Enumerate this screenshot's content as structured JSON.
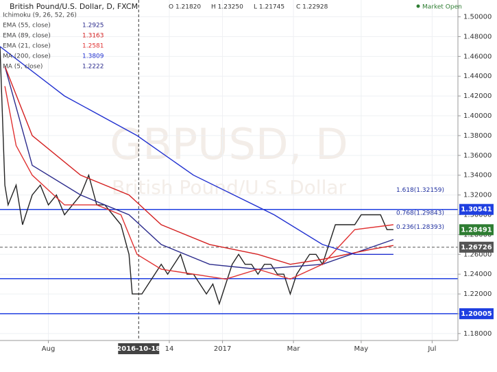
{
  "chart_data": {
    "type": "line",
    "title": "British Pound/U.S. Dollar, D, FXCM",
    "ohlc_text": [
      "O 1.21820",
      "H 1.23250",
      "L 1.21745",
      "C 1.22928"
    ],
    "status": "Market Open",
    "watermark": [
      "GBPUSD, D",
      "British Pound/U.S. Dollar"
    ],
    "xlim": [
      0,
      284
    ],
    "xticks": [
      {
        "value": 30,
        "label": "Aug"
      },
      {
        "value": 105,
        "label": "14"
      },
      {
        "value": 138,
        "label": "2017"
      },
      {
        "value": 182,
        "label": "Mar"
      },
      {
        "value": 224,
        "label": "May"
      },
      {
        "value": 268,
        "label": "Jul"
      }
    ],
    "crosshair": {
      "value": 86,
      "label": "2016-10-18"
    },
    "ylim": [
      1.173,
      1.517
    ],
    "yticks": [
      {
        "value": 1.18,
        "label": "1.18000"
      },
      {
        "value": 1.2,
        "label": "1.20000"
      },
      {
        "value": 1.22,
        "label": "1.22000"
      },
      {
        "value": 1.24,
        "label": "1.24000"
      },
      {
        "value": 1.26,
        "label": "1.26000"
      },
      {
        "value": 1.28,
        "label": "1.28000"
      },
      {
        "value": 1.3,
        "label": "1.30000"
      },
      {
        "value": 1.32,
        "label": "1.32000"
      },
      {
        "value": 1.34,
        "label": "1.34000"
      },
      {
        "value": 1.36,
        "label": "1.36000"
      },
      {
        "value": 1.38,
        "label": "1.38000"
      },
      {
        "value": 1.4,
        "label": "1.40000"
      },
      {
        "value": 1.42,
        "label": "1.42000"
      },
      {
        "value": 1.44,
        "label": "1.44000"
      },
      {
        "value": 1.46,
        "label": "1.46000"
      },
      {
        "value": 1.48,
        "label": "1.48000"
      },
      {
        "value": 1.5,
        "label": "1.50000"
      }
    ],
    "grid": true,
    "series": [
      {
        "color": "#222222",
        "x": [
          0,
          3,
          5,
          10,
          14,
          20,
          25,
          30,
          35,
          40,
          45,
          50,
          55,
          60,
          65,
          70,
          75,
          80,
          82,
          84,
          88,
          92,
          96,
          100,
          104,
          108,
          112,
          116,
          120,
          124,
          128,
          132,
          136,
          140,
          144,
          148,
          152,
          156,
          160,
          164,
          168,
          172,
          176,
          180,
          184,
          188,
          192,
          196,
          200,
          204,
          208,
          212,
          216,
          220,
          224,
          228,
          232,
          236,
          240,
          244
        ],
        "values": [
          1.47,
          1.33,
          1.31,
          1.33,
          1.29,
          1.32,
          1.33,
          1.31,
          1.32,
          1.3,
          1.31,
          1.32,
          1.34,
          1.31,
          1.31,
          1.3,
          1.29,
          1.26,
          1.22,
          1.22,
          1.22,
          1.23,
          1.24,
          1.25,
          1.24,
          1.25,
          1.26,
          1.24,
          1.24,
          1.23,
          1.22,
          1.23,
          1.21,
          1.23,
          1.25,
          1.26,
          1.25,
          1.25,
          1.24,
          1.25,
          1.25,
          1.24,
          1.24,
          1.22,
          1.24,
          1.25,
          1.26,
          1.26,
          1.25,
          1.27,
          1.29,
          1.29,
          1.29,
          1.29,
          1.3,
          1.3,
          1.3,
          1.3,
          1.285,
          1.285
        ]
      },
      {
        "name": "Ichimoku (9, 26, 52, 26)",
        "color": "#888888"
      },
      {
        "name": "EMA (55, close)",
        "color": "#2b2b8c",
        "legend_value": 1.2925,
        "x": [
          3,
          20,
          50,
          80,
          100,
          130,
          160,
          200,
          244
        ],
        "values": [
          1.45,
          1.35,
          1.32,
          1.3,
          1.27,
          1.25,
          1.245,
          1.25,
          1.275
        ]
      },
      {
        "name": "EMA (89, close)",
        "color": "#d42020",
        "legend_value": 1.3163,
        "x": [
          3,
          20,
          50,
          80,
          100,
          130,
          160,
          180,
          200,
          230,
          244
        ],
        "values": [
          1.45,
          1.38,
          1.34,
          1.32,
          1.29,
          1.27,
          1.26,
          1.25,
          1.255,
          1.265,
          1.269
        ]
      },
      {
        "name": "EMA (21, close)",
        "color": "#e03030",
        "legend_value": 1.2581,
        "x": [
          3,
          10,
          20,
          40,
          60,
          75,
          85,
          100,
          120,
          140,
          160,
          180,
          200,
          220,
          244
        ],
        "values": [
          1.43,
          1.37,
          1.34,
          1.31,
          1.31,
          1.3,
          1.26,
          1.245,
          1.24,
          1.235,
          1.245,
          1.235,
          1.25,
          1.285,
          1.29
        ]
      },
      {
        "name": "MA (200, close)",
        "color": "#2030d0",
        "legend_value": 1.3809,
        "x": [
          0,
          40,
          85,
          120,
          170,
          200,
          220,
          244
        ],
        "values": [
          1.47,
          1.42,
          1.38,
          1.34,
          1.3,
          1.27,
          1.26,
          1.26
        ]
      },
      {
        "name": "MA (5, close)",
        "color": "#2b2b8c",
        "legend_value": 1.2222
      }
    ],
    "price_lines": [
      {
        "value": 1.30541,
        "color": "#1f3fe0",
        "dashed": false
      },
      {
        "value": 1.2355,
        "color": "#1f3fe0",
        "dashed": false
      },
      {
        "value": 1.20005,
        "color": "#1f3fe0",
        "dashed": false
      },
      {
        "value": 1.26726,
        "color": "#555555",
        "dashed": true
      }
    ],
    "price_labels": [
      {
        "value": 1.30541,
        "color": "#1f3fe0"
      },
      {
        "value": 1.28491,
        "color": "#2e7d32"
      },
      {
        "value": 1.26726,
        "color": "#555555"
      },
      {
        "value": 1.20005,
        "color": "#1f3fe0"
      }
    ],
    "annotations": [
      {
        "text": "1.618(1.32159)",
        "value": 1.32159
      },
      {
        "text": "0.768(1.29843)",
        "value": 1.29843
      },
      {
        "text": "0.236(1.28393)",
        "value": 1.28393
      }
    ]
  }
}
